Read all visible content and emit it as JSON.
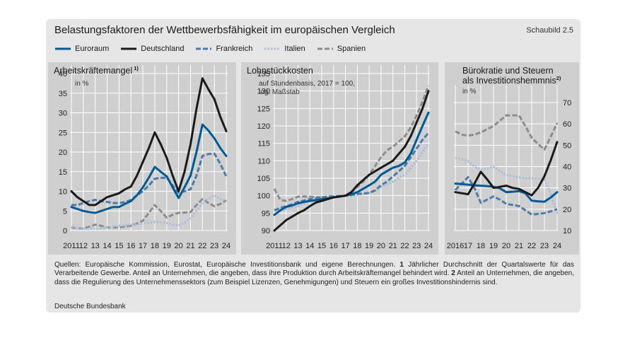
{
  "header": {
    "title": "Belastungsfaktoren der Wettbewerbsfähigkeit im europäischen Vergleich",
    "figure_no": "Schaubild 2.5"
  },
  "legend": [
    {
      "name": "Euroraum",
      "color": "#005a94",
      "style": "solid"
    },
    {
      "name": "Deutschland",
      "color": "#1a1a1a",
      "style": "solid"
    },
    {
      "name": "Frankreich",
      "color": "#4f79a8",
      "style": "dash"
    },
    {
      "name": "Italien",
      "color": "#a7bfd9",
      "style": "dot"
    },
    {
      "name": "Spanien",
      "color": "#8c8c8c",
      "style": "dash"
    }
  ],
  "chart_data": [
    {
      "type": "line",
      "title": "Arbeitskräftemangel",
      "title_sup": "1)",
      "unit": "in %",
      "x_tick_labels": [
        "2011",
        "12",
        "13",
        "14",
        "15",
        "16",
        "17",
        "18",
        "19",
        "20",
        "21",
        "22",
        "23",
        "24"
      ],
      "ylim": [
        0,
        40
      ],
      "y_ticks": [
        0,
        5,
        10,
        15,
        20,
        25,
        30,
        35,
        40
      ],
      "y_axis_side": "left",
      "x": [
        2011,
        2011.5,
        2012,
        2012.5,
        2013,
        2013.5,
        2014,
        2014.5,
        2015,
        2015.5,
        2016,
        2016.5,
        2017,
        2017.5,
        2018,
        2018.5,
        2019,
        2019.5,
        2020,
        2020.5,
        2021,
        2021.5,
        2022,
        2022.5,
        2023,
        2023.5,
        2024
      ],
      "series": [
        {
          "name": "Euroraum",
          "values": [
            6,
            5.5,
            5,
            4.7,
            4.5,
            5,
            5.5,
            6,
            6,
            6.8,
            7.5,
            9,
            11,
            13.5,
            16.2,
            15,
            13.8,
            11,
            8.3,
            11,
            14,
            20,
            27,
            25.5,
            23.5,
            21,
            19
          ]
        },
        {
          "name": "Deutschland",
          "values": [
            10,
            8.5,
            7.5,
            6.5,
            6.5,
            7.5,
            8.5,
            9,
            9.5,
            10.5,
            11.2,
            14,
            17.5,
            21,
            25,
            22,
            18.5,
            14,
            10,
            15,
            22,
            31,
            38.8,
            36,
            33.5,
            29,
            25.3
          ]
        },
        {
          "name": "Frankreich",
          "values": [
            6.5,
            6.5,
            7,
            7.5,
            7.8,
            7.5,
            7.3,
            7,
            7,
            7.2,
            7.8,
            9,
            10,
            11.5,
            13.2,
            13.4,
            13.5,
            11.5,
            9.6,
            10,
            10.5,
            14,
            19,
            19.5,
            19.6,
            17,
            13.8
          ]
        },
        {
          "name": "Italien",
          "values": [
            1,
            0.6,
            0.5,
            0.5,
            0.5,
            0.6,
            0.8,
            1,
            1.2,
            1.3,
            1.5,
            1.6,
            1.8,
            2,
            2.2,
            2.1,
            1.9,
            1.5,
            1.3,
            2,
            3.2,
            5,
            7,
            8,
            9,
            8,
            7.5
          ]
        },
        {
          "name": "Spanien",
          "values": [
            0.8,
            0.6,
            0.5,
            1,
            1.5,
            1.2,
            0.8,
            0.8,
            0.8,
            1,
            1.2,
            1.8,
            2.5,
            4.5,
            6.5,
            5,
            3.3,
            4,
            4.5,
            4.6,
            4.7,
            6.5,
            8,
            7,
            6.2,
            6.8,
            7.7
          ]
        }
      ]
    },
    {
      "type": "line",
      "title": "Lohnstückkosten",
      "subtitle_lines": [
        "auf Stundenbasis, 2017 = 100,",
        "log. Maßstab"
      ],
      "x_tick_labels": [
        "2011",
        "12",
        "13",
        "14",
        "15",
        "16",
        "17",
        "18",
        "19",
        "20",
        "21",
        "22",
        "23",
        "24"
      ],
      "ylim": [
        90,
        135
      ],
      "y_ticks": [
        90,
        95,
        100,
        105,
        110,
        115,
        120,
        125,
        130,
        135
      ],
      "y_axis_side": "left",
      "x": [
        2011,
        2011.5,
        2012,
        2012.5,
        2013,
        2013.5,
        2014,
        2014.5,
        2015,
        2015.5,
        2016,
        2016.5,
        2017,
        2017.5,
        2018,
        2018.5,
        2019,
        2019.5,
        2020,
        2020.5,
        2021,
        2021.5,
        2022,
        2022.5,
        2023,
        2023.5,
        2024
      ],
      "series": [
        {
          "name": "Euroraum",
          "values": [
            94.5,
            95.8,
            96.8,
            97.2,
            97.8,
            98.2,
            98.5,
            98.7,
            99,
            99.2,
            99.5,
            99.7,
            100,
            100.4,
            101,
            102,
            103,
            104,
            106,
            107,
            108,
            108.5,
            109.5,
            112,
            116,
            120,
            123.8
          ]
        },
        {
          "name": "Deutschland",
          "values": [
            90,
            91.5,
            93,
            94,
            95,
            95.8,
            97,
            98,
            98.5,
            99,
            99.5,
            99.8,
            100,
            101,
            103,
            104.5,
            106,
            107,
            108,
            109,
            110,
            112,
            114,
            117,
            121,
            125,
            130
          ]
        },
        {
          "name": "Frankreich",
          "values": [
            95.8,
            96.5,
            97,
            97.5,
            98.2,
            98.6,
            99,
            99.2,
            99.5,
            99.8,
            99.8,
            99.9,
            100,
            100.2,
            100.5,
            100.6,
            100.8,
            101.5,
            103,
            104,
            105.5,
            107,
            108.5,
            111,
            113.5,
            116,
            118
          ]
        },
        {
          "name": "Italien",
          "values": [
            94.3,
            95.5,
            96.2,
            96.6,
            97,
            97.8,
            98.5,
            98.9,
            99.2,
            99.5,
            99.6,
            99.8,
            100,
            100.1,
            100.2,
            100.4,
            100.8,
            101.3,
            102.5,
            103.2,
            104,
            105,
            106,
            108,
            110,
            112.5,
            115
          ]
        },
        {
          "name": "Spanien",
          "values": [
            102,
            98.8,
            98.5,
            99,
            99.7,
            99.8,
            99.7,
            99.6,
            99.5,
            99.4,
            99.6,
            99.8,
            100,
            101,
            102.5,
            104,
            106,
            108.5,
            111,
            113,
            114,
            115.5,
            117,
            119.5,
            123,
            127,
            131.5
          ]
        }
      ]
    },
    {
      "type": "line",
      "title_lines": [
        "Bürokratie und Steuern",
        "als Investitionshemmnis"
      ],
      "title_sup": "2)",
      "unit": "in %",
      "x_tick_labels": [
        "2016",
        "17",
        "18",
        "19",
        "20",
        "21",
        "22",
        "23",
        "24"
      ],
      "ylim": [
        10,
        70
      ],
      "y_ticks": [
        10,
        20,
        30,
        40,
        50,
        60,
        70
      ],
      "y_axis_side": "right",
      "x": [
        2016,
        2016.5,
        2017,
        2017.5,
        2018,
        2018.5,
        2019,
        2019.5,
        2020,
        2020.5,
        2021,
        2021.5,
        2022,
        2022.5,
        2023,
        2023.5,
        2024
      ],
      "series": [
        {
          "name": "Euroraum",
          "values": [
            32,
            31.8,
            31.5,
            31.2,
            31,
            30.8,
            30.5,
            29.8,
            28,
            28.2,
            28.5,
            27.5,
            24,
            23.7,
            23.5,
            25.5,
            28
          ]
        },
        {
          "name": "Deutschland",
          "values": [
            28,
            27.5,
            27,
            32,
            37.5,
            34,
            30,
            30.5,
            31,
            30,
            29.5,
            28,
            26.5,
            30,
            35.5,
            43,
            51.5
          ]
        },
        {
          "name": "Frankreich",
          "values": [
            29,
            32,
            35,
            30,
            23,
            24.5,
            26,
            24.5,
            22.5,
            22,
            21.5,
            19.5,
            17.5,
            17.8,
            18.2,
            19,
            20
          ]
        },
        {
          "name": "Italien",
          "values": [
            44,
            43.5,
            42.5,
            40,
            38.5,
            39,
            40,
            38,
            36,
            35.5,
            35,
            34.5,
            34.5,
            34.2,
            34,
            27,
            18
          ]
        },
        {
          "name": "Spanien",
          "values": [
            56.5,
            55,
            54.5,
            55,
            56,
            57.5,
            59,
            61.5,
            64,
            64,
            64,
            59,
            53.5,
            50.5,
            48,
            54,
            60.5
          ]
        }
      ]
    }
  ],
  "notes": {
    "prefix": "Quellen: Europäische Kommission, Eurostat, Europäische Investitionsbank und eigene Berechnungen. ",
    "n1_num": "1",
    "n1_text": " Jährlicher Durchschnitt der Quartalswerte für das Verarbeitende Gewerbe. Anteil an Unternehmen, die angeben, dass ihre Produktion durch Arbeitskräftemangel behindert wird. ",
    "n2_num": "2",
    "n2_text": " Anteil an Unternehmen, die angeben, dass die Regulierung des Unternehmenssektors (zum Beispiel Lizenzen, Genehmigungen) und Steuern ein großes Investitionshindernis sind."
  },
  "source": "Deutsche Bundesbank"
}
